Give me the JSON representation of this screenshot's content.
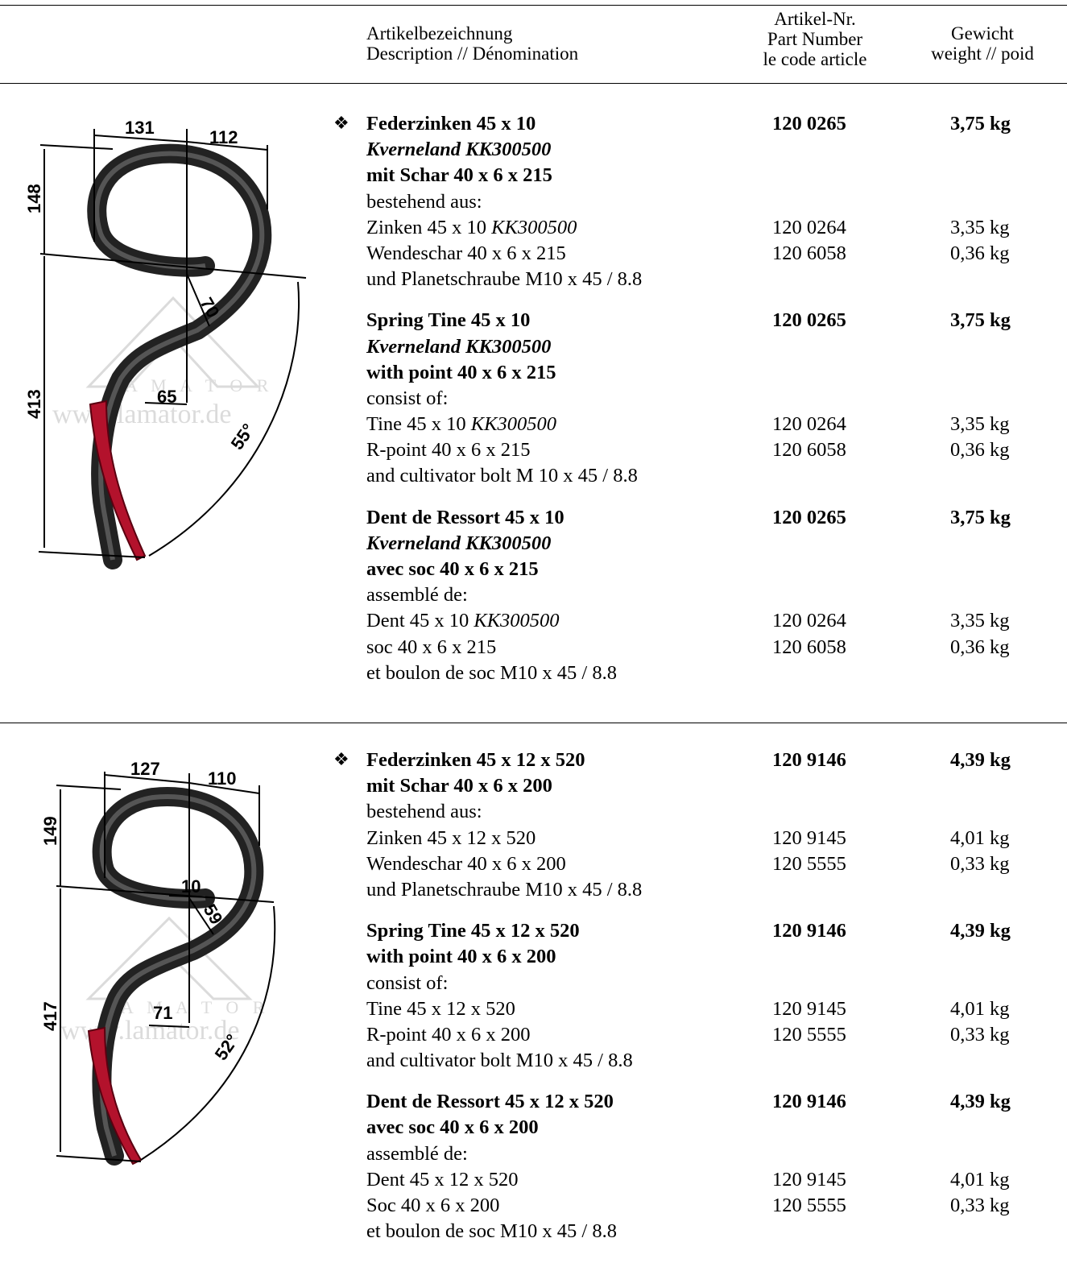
{
  "header": {
    "col_description": [
      "Artikelbezeichnung",
      "Description // Dénomination"
    ],
    "col_part_number": [
      "Artikel-Nr.",
      "Part Number",
      "le code article"
    ],
    "col_weight": [
      "Gewicht",
      "weight // poid"
    ]
  },
  "products": [
    {
      "bullet": "❖",
      "drawing": {
        "dims": {
          "top_left": "131",
          "top_right": "112",
          "upper_height": "148",
          "lower_height": "413",
          "point_offset": "65",
          "depth": "70",
          "angle": "55°"
        },
        "watermark": {
          "letters": "A M A T O R",
          "url": "www.lamator.de"
        }
      },
      "blocks": [
        {
          "lines": [
            {
              "desc": "Federzinken 45 x 10",
              "part": "120 0265",
              "weight": "3,75 kg",
              "style": "b"
            },
            {
              "desc": "Kverneland KK300500",
              "style": "bi"
            },
            {
              "desc": "mit Schar 40 x 6 x 215",
              "style": "b"
            },
            {
              "desc": "bestehend aus:"
            },
            {
              "desc": "Zinken 45 x 10 ",
              "desc_it": "KK300500",
              "part": "120 0264",
              "weight": "3,35 kg"
            },
            {
              "desc": "Wendeschar 40 x 6 x 215",
              "part": "120 6058",
              "weight": "0,36 kg"
            },
            {
              "desc": "und Planetschraube M10 x 45 / 8.8"
            }
          ]
        },
        {
          "lines": [
            {
              "desc": "Spring Tine 45 x 10",
              "part": "120 0265",
              "weight": "3,75 kg",
              "style": "b"
            },
            {
              "desc": "Kverneland KK300500",
              "style": "bi"
            },
            {
              "desc": "with point 40 x 6 x 215",
              "style": "b"
            },
            {
              "desc": "consist of:"
            },
            {
              "desc": "Tine 45 x 10 ",
              "desc_it": "KK300500",
              "part": "120 0264",
              "weight": "3,35 kg"
            },
            {
              "desc": "R-point 40 x 6 x 215",
              "part": "120 6058",
              "weight": "0,36 kg"
            },
            {
              "desc": "and cultivator bolt M 10 x 45 / 8.8"
            }
          ]
        },
        {
          "lines": [
            {
              "desc": "Dent de Ressort 45 x 10",
              "part": "120 0265",
              "weight": "3,75 kg",
              "style": "b"
            },
            {
              "desc": "Kverneland KK300500",
              "style": "bi"
            },
            {
              "desc": "avec soc 40 x 6 x 215",
              "style": "b"
            },
            {
              "desc": "assemblé de:"
            },
            {
              "desc": "Dent 45 x 10 ",
              "desc_it": "KK300500",
              "part": "120 0264",
              "weight": "3,35 kg"
            },
            {
              "desc": "soc 40 x 6 x 215",
              "part": "120 6058",
              "weight": "0,36 kg"
            },
            {
              "desc": "et boulon de soc M10 x 45 / 8.8"
            }
          ]
        }
      ]
    },
    {
      "bullet": "❖",
      "drawing": {
        "dims": {
          "top_left": "127",
          "top_right": "110",
          "upper_height": "149",
          "lower_height": "417",
          "point_offset": "71",
          "depth": "59",
          "small": "10",
          "angle": "52°"
        },
        "watermark": {
          "letters": "A M A T O R",
          "url": "www.lamator.de"
        }
      },
      "blocks": [
        {
          "lines": [
            {
              "desc": "Federzinken 45 x 12 x 520",
              "part": "120 9146",
              "weight": "4,39 kg",
              "style": "b"
            },
            {
              "desc": "mit Schar 40 x 6 x 200",
              "style": "b"
            },
            {
              "desc": "bestehend aus:"
            },
            {
              "desc": "Zinken 45 x 12 x 520",
              "part": "120 9145",
              "weight": "4,01 kg"
            },
            {
              "desc": "Wendeschar 40 x 6 x 200",
              "part": "120 5555",
              "weight": "0,33 kg"
            },
            {
              "desc": "und Planetschraube M10 x 45 / 8.8"
            }
          ]
        },
        {
          "lines": [
            {
              "desc": "Spring Tine 45 x 12 x 520",
              "part": "120 9146",
              "weight": "4,39 kg",
              "style": "b"
            },
            {
              "desc": "with point 40 x 6 x 200",
              "style": "b"
            },
            {
              "desc": "consist of:"
            },
            {
              "desc": "Tine 45 x 12 x 520",
              "part": "120 9145",
              "weight": "4,01 kg"
            },
            {
              "desc": "R-point 40 x 6 x 200",
              "part": "120 5555",
              "weight": "0,33 kg"
            },
            {
              "desc": "and cultivator bolt M10 x 45 / 8.8"
            }
          ]
        },
        {
          "lines": [
            {
              "desc": "Dent de Ressort 45 x 12 x 520",
              "part": "120 9146",
              "weight": "4,39 kg",
              "style": "b"
            },
            {
              "desc": "avec soc 40 x 6 x 200",
              "style": "b"
            },
            {
              "desc": "assemblé de:"
            },
            {
              "desc": "Dent 45 x 12 x 520",
              "part": "120 9145",
              "weight": "4,01 kg"
            },
            {
              "desc": "Soc 40 x 6 x 200",
              "part": "120 5555",
              "weight": "0,33 kg"
            },
            {
              "desc": "et boulon de soc M10 x 45 / 8.8"
            }
          ]
        }
      ]
    }
  ]
}
